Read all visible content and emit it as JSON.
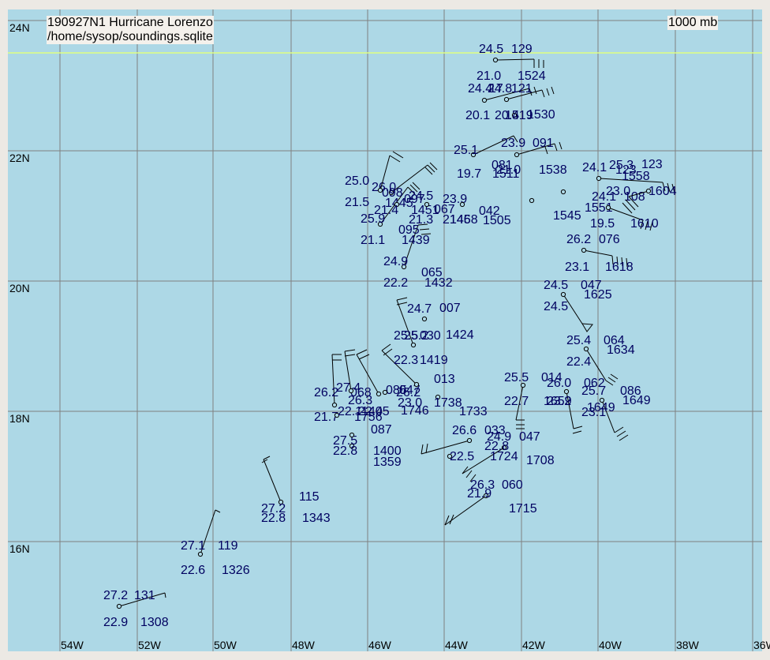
{
  "title": {
    "line1": "190927N1 Hurricane Lorenzo",
    "line2": "/home/sysop/soundings.sqlite",
    "level": "1000 mb"
  },
  "colors": {
    "ocean": "#add8e6",
    "grid": "#808080",
    "tropic": "#e0ff80",
    "station_text": "#000060",
    "frame": "#ece9e4"
  },
  "axes": {
    "lon_labels": [
      "54W",
      "52W",
      "50W",
      "48W",
      "46W",
      "44W",
      "42W",
      "40W",
      "38W",
      "36W"
    ],
    "lat_labels": [
      "24N",
      "22N",
      "20N",
      "18N",
      "16N"
    ]
  },
  "stations": [
    {
      "p": [
        151,
        768
      ],
      "lt": [
        131,
        754,
        "27.2"
      ],
      "rt": [
        170,
        754,
        "131"
      ],
      "lb": [
        131,
        788,
        "22.9"
      ],
      "rb": [
        178,
        788,
        "1308"
      ],
      "bar": [
        [
          209,
          751
        ],
        [
          210,
          757
        ]
      ]
    },
    {
      "p": [
        254,
        702
      ],
      "lt": [
        229,
        691,
        "27.1"
      ],
      "rt": [
        276,
        691,
        "119"
      ],
      "lb": [
        229,
        722,
        "22.6"
      ],
      "rb": [
        281,
        722,
        "1326"
      ],
      "bar": [
        [
          273,
          646
        ],
        [
          279,
          649
        ]
      ]
    },
    {
      "p": [
        356,
        636
      ],
      "lt": [
        331,
        644,
        "27.2"
      ],
      "rt": [
        379,
        629,
        "115"
      ],
      "lb": [
        331,
        656,
        "22.8"
      ],
      "rb": [
        383,
        656,
        "1343"
      ],
      "bar": [
        [
          334,
          582
        ],
        [
          342,
          578
        ],
        [
          332,
          586
        ],
        [
          339,
          582
        ]
      ]
    },
    {
      "p": [
        446,
        565
      ],
      "lt": [
        422,
        558,
        "27.5"
      ],
      "rt": [
        470,
        544,
        "087"
      ],
      "lb": [
        422,
        571,
        "22.8"
      ],
      "rb": [
        473,
        571,
        "1400"
      ]
    },
    {
      "p": [
        446,
        551
      ],
      "lt": [
        398,
        528,
        "21.7"
      ],
      "rt": [
        449,
        528,
        "1756"
      ]
    },
    {
      "p": [
        427,
        526
      ],
      "lt": [
        428,
        521,
        "22.1"
      ],
      "rt": [
        458,
        521,
        "1405"
      ]
    },
    {
      "p": [
        424,
        513
      ],
      "lt": [
        398,
        497,
        "26.2"
      ],
      "rt": [
        444,
        497,
        "068"
      ],
      "lb": [
        426,
        491,
        "27.4"
      ],
      "bar": [
        [
          421,
          449
        ],
        [
          433,
          449
        ],
        [
          421,
          456
        ],
        [
          433,
          456
        ]
      ]
    },
    {
      "p": [
        445,
        495
      ],
      "lt": [
        441,
        507,
        "26.3"
      ],
      "rt": [
        489,
        494,
        "085"
      ],
      "lb": [
        454,
        521,
        "22.4"
      ],
      "bar": [
        [
          437,
          445
        ],
        [
          450,
          443
        ],
        [
          437,
          451
        ],
        [
          450,
          449
        ]
      ]
    },
    {
      "p": [
        480,
        499
      ],
      "lt": [
        473,
        585,
        "1359"
      ],
      "rt": [
        506,
        494,
        "047"
      ],
      "lb": [
        504,
        510,
        "23.0"
      ],
      "rb": [
        508,
        520,
        "1746"
      ],
      "bar": [
        [
          452,
          449
        ],
        [
          465,
          443
        ],
        [
          455,
          455
        ],
        [
          468,
          449
        ]
      ]
    },
    {
      "p": [
        488,
        497
      ],
      "lt": [
        502,
        497,
        "26.2"
      ]
    },
    {
      "p": [
        528,
        487
      ],
      "lt": [
        499,
        456,
        "22.3"
      ],
      "rt": [
        550,
        480,
        "013"
      ],
      "lb": [
        532,
        456,
        "1419"
      ],
      "bar": [
        [
          484,
          444
        ],
        [
          495,
          436
        ],
        [
          486,
          450
        ],
        [
          497,
          442
        ]
      ]
    },
    {
      "p": [
        555,
        503
      ],
      "lt": [
        550,
        510,
        "1738"
      ]
    },
    {
      "p": [
        524,
        437
      ],
      "lt": [
        499,
        425,
        "25.5"
      ],
      "rt": [
        532,
        425,
        "030"
      ],
      "lb": [
        512,
        425,
        "25.2"
      ],
      "rb": [
        565,
        424,
        "1424"
      ],
      "bar": [
        [
          503,
          380
        ],
        [
          516,
          377
        ],
        [
          503,
          386
        ],
        [
          516,
          383
        ]
      ]
    },
    {
      "p": [
        538,
        404
      ],
      "lt": [
        516,
        391,
        "24.7"
      ],
      "rt": [
        557,
        390,
        "007"
      ]
    },
    {
      "p": [
        512,
        338
      ],
      "lt": [
        486,
        331,
        "24.9"
      ],
      "rt": [
        534,
        345,
        "065"
      ],
      "lb": [
        486,
        358,
        "22.2"
      ],
      "rb": [
        538,
        358,
        "1432"
      ],
      "bar": [
        [
          530,
          285
        ],
        [
          542,
          284
        ],
        [
          532,
          291
        ],
        [
          544,
          290
        ],
        [
          534,
          297
        ],
        [
          546,
          296
        ]
      ]
    },
    {
      "p": [
        482,
        284
      ],
      "lt": [
        457,
        277,
        "25.9"
      ],
      "rt": [
        505,
        291,
        "095"
      ],
      "lb": [
        457,
        304,
        "21.1"
      ],
      "rb": [
        509,
        304,
        "1439"
      ],
      "bar": [
        [
          517,
          237
        ],
        [
          526,
          246
        ],
        [
          520,
          234
        ],
        [
          529,
          243
        ],
        [
          523,
          231
        ],
        [
          532,
          240
        ]
      ]
    },
    {
      "p": [
        496,
        244
      ],
      "lt": [
        471,
        237,
        "26.0"
      ],
      "rt": [
        484,
        244,
        "098"
      ],
      "lb": [
        488,
        257,
        "1445"
      ],
      "bar": [
        [
          542,
          209
        ],
        [
          551,
          218
        ],
        [
          539,
          212
        ],
        [
          548,
          221
        ],
        [
          545,
          206
        ],
        [
          554,
          215
        ]
      ]
    },
    {
      "p": [
        503,
        259
      ],
      "lt": [
        474,
        266,
        "21.4"
      ],
      "rt": [
        512,
        252,
        "097"
      ],
      "lb": [
        518,
        248,
        "24.5"
      ],
      "rb": [
        521,
        266,
        "1451"
      ]
    },
    {
      "p": [
        541,
        259
      ],
      "lt": [
        518,
        278,
        "21.3"
      ],
      "rt": [
        550,
        265,
        "067"
      ],
      "lb": [
        561,
        252,
        "23.9"
      ],
      "rb": [
        561,
        278,
        "2146"
      ]
    },
    {
      "p": [
        586,
        259
      ],
      "lt": [
        570,
        278,
        "1458"
      ],
      "rt": [
        607,
        267,
        "042"
      ],
      "lb": [
        612,
        279,
        "1505"
      ]
    },
    {
      "p": [
        482,
        241
      ],
      "lt": [
        437,
        229,
        "25.0"
      ],
      "lb": [
        437,
        256,
        "21.5"
      ],
      "bar": [
        [
          494,
          197
        ],
        [
          507,
          205
        ],
        [
          498,
          192
        ],
        [
          511,
          200
        ]
      ]
    },
    {
      "p": [
        600,
        196
      ],
      "lt": [
        575,
        190,
        "25.1"
      ],
      "rt": [
        623,
        209,
        "081"
      ],
      "lb": [
        579,
        220,
        "19.7"
      ],
      "rb": [
        624,
        220,
        "1511"
      ],
      "bar": [
        [
          651,
          172
        ],
        [
          656,
          180
        ]
      ]
    },
    {
      "p": [
        655,
        196
      ],
      "lt": [
        635,
        181,
        "23.9"
      ],
      "rt": [
        675,
        181,
        "091"
      ],
      "lb": [
        629,
        215,
        "21.0"
      ],
      "rb": [
        683,
        215,
        "1538"
      ],
      "bar": [
        [
          703,
          182
        ],
        [
          706,
          191
        ],
        [
          709,
          180
        ],
        [
          712,
          189
        ],
        [
          691,
          186
        ],
        [
          694,
          195
        ]
      ]
    },
    {
      "p": [
        614,
        127
      ],
      "lt": [
        593,
        112,
        "24.4"
      ],
      "rt": [
        618,
        112,
        "24.8"
      ],
      "lb": [
        590,
        146,
        "20.1"
      ],
      "rb": [
        640,
        146,
        "1519"
      ],
      "bar": [
        [
          671,
          112
        ],
        [
          674,
          121
        ],
        [
          677,
          110
        ],
        [
          680,
          119
        ]
      ]
    },
    {
      "p": [
        642,
        126
      ],
      "lt": [
        604,
        96,
        "21.0"
      ],
      "rt": [
        656,
        96,
        "1524"
      ],
      "lb": [
        620,
        112,
        "17"
      ],
      "rb": [
        648,
        112,
        "121"
      ],
      "bar": [
        [
          687,
          114
        ],
        [
          690,
          123
        ],
        [
          693,
          112
        ],
        [
          696,
          121
        ],
        [
          699,
          110
        ],
        [
          702,
          119
        ]
      ]
    },
    {
      "p": [
        652,
        146
      ],
      "lt": [
        627,
        146,
        "20.4"
      ],
      "rb": [
        668,
        145,
        "1530"
      ]
    },
    {
      "p": [
        628,
        76
      ],
      "lt": [
        607,
        62,
        "24.5"
      ],
      "rt": [
        648,
        62,
        "129"
      ],
      "bar": [
        [
          677,
          75
        ],
        [
          677,
          86
        ],
        [
          683,
          75
        ],
        [
          683,
          86
        ],
        [
          689,
          76
        ],
        [
          689,
          86
        ]
      ]
    },
    {
      "p": [
        674,
        254
      ],
      "lt": [
        701,
        273,
        "1545"
      ]
    },
    {
      "p": [
        714,
        243
      ],
      "lt": [
        738,
        212,
        "24.1"
      ],
      "rt": [
        750,
        249,
        "24.1"
      ],
      "lb": [
        741,
        263,
        "1551"
      ]
    },
    {
      "p": [
        759,
        226
      ],
      "lt": [
        772,
        209,
        "25.3"
      ],
      "rt": [
        813,
        208,
        "123"
      ],
      "lb": [
        780,
        215,
        "123"
      ],
      "rb": [
        788,
        223,
        "1558"
      ],
      "bar": [
        [
          840,
          231
        ],
        [
          843,
          242
        ],
        [
          846,
          232
        ],
        [
          849,
          243
        ],
        [
          852,
          233
        ],
        [
          855,
          244
        ]
      ]
    },
    {
      "p": [
        771,
        263
      ],
      "lt": [
        768,
        242,
        "23.0"
      ],
      "rt": [
        791,
        249,
        "108"
      ],
      "lb": [
        748,
        283,
        "19.5"
      ],
      "rb": [
        799,
        283,
        "1610"
      ],
      "bar": [
        [
          815,
          279
        ],
        [
          812,
          290
        ],
        [
          821,
          280
        ],
        [
          818,
          291
        ],
        [
          827,
          281
        ],
        [
          824,
          292
        ]
      ]
    },
    {
      "p": [
        822,
        242
      ],
      "lt": [
        822,
        242,
        "1604"
      ],
      "bar": [
        [
          797,
          249
        ],
        [
          809,
          262
        ],
        [
          793,
          253
        ],
        [
          805,
          266
        ],
        [
          789,
          257
        ],
        [
          801,
          270
        ]
      ]
    },
    {
      "p": [
        740,
        317
      ],
      "lt": [
        718,
        303,
        "26.2"
      ],
      "rt": [
        759,
        303,
        "076"
      ],
      "lb": [
        716,
        338,
        "23.1"
      ],
      "rb": [
        767,
        338,
        "1618"
      ],
      "bar": [
        [
          776,
          324
        ],
        [
          777,
          335
        ],
        [
          782,
          325
        ],
        [
          783,
          336
        ],
        [
          788,
          326
        ],
        [
          789,
          337
        ],
        [
          794,
          327
        ],
        [
          795,
          338
        ]
      ]
    },
    {
      "p": [
        714,
        373
      ],
      "lt": [
        689,
        361,
        "24.5"
      ],
      "rt": [
        736,
        361,
        "047"
      ],
      "lb": [
        689,
        388,
        "24.5"
      ],
      "rb": [
        740,
        373,
        "1625"
      ],
      "flag": [
        [
          738,
          410
        ],
        [
          751,
          411
        ],
        [
          744,
          420
        ]
      ]
    },
    {
      "p": [
        743,
        442
      ],
      "lt": [
        718,
        431,
        "25.4"
      ],
      "rt": [
        765,
        431,
        "064"
      ],
      "lb": [
        718,
        458,
        "22.4"
      ],
      "rb": [
        769,
        443,
        "1634"
      ],
      "bar": [
        [
          768,
          482
        ],
        [
          777,
          488
        ],
        [
          771,
          478
        ],
        [
          780,
          484
        ],
        [
          774,
          474
        ],
        [
          783,
          480
        ]
      ]
    },
    {
      "p": [
        718,
        496
      ],
      "lt": [
        693,
        485,
        "26.0"
      ],
      "rt": [
        740,
        485,
        "062"
      ],
      "lb": [
        693,
        508,
        "23.2"
      ],
      "rb": [
        689,
        508,
        "1659"
      ],
      "bar": [
        [
          727,
          543
        ],
        [
          738,
          540
        ],
        [
          726,
          549
        ],
        [
          737,
          546
        ]
      ]
    },
    {
      "p": [
        763,
        507
      ],
      "lt": [
        737,
        495,
        "25.7"
      ],
      "rt": [
        786,
        495,
        "086"
      ],
      "lb": [
        737,
        522,
        "23.1"
      ],
      "rb": [
        789,
        507,
        "1649"
      ],
      "bar": [
        [
          779,
          548
        ],
        [
          790,
          541
        ],
        [
          782,
          553
        ],
        [
          793,
          546
        ],
        [
          785,
          558
        ],
        [
          796,
          551
        ]
      ]
    },
    {
      "p": [
        663,
        488
      ],
      "lt": [
        639,
        478,
        "25.5"
      ],
      "rt": [
        686,
        478,
        "014"
      ],
      "lb": [
        639,
        508,
        "22.7"
      ],
      "rb": [
        744,
        516,
        "1649"
      ],
      "bar": [
        [
          654,
          532
        ],
        [
          665,
          532
        ],
        [
          654,
          538
        ],
        [
          665,
          538
        ],
        [
          654,
          543
        ],
        [
          665,
          543
        ]
      ]
    },
    {
      "p": [
        595,
        558
      ],
      "lt": [
        573,
        545,
        "26.6"
      ],
      "rt": [
        614,
        545,
        "033"
      ],
      "lb": [
        582,
        521,
        "1733"
      ],
      "bar": [
        [
          534,
          575
        ],
        [
          536,
          563
        ],
        [
          540,
          574
        ],
        [
          542,
          562
        ]
      ]
    },
    {
      "p": [
        639,
        567
      ],
      "lt": [
        617,
        553,
        "24.9"
      ],
      "rt": [
        658,
        553,
        "047"
      ],
      "lb": [
        614,
        565,
        "22.8"
      ],
      "rb": [
        621,
        578,
        "1724"
      ],
      "bar": [
        [
          586,
          600
        ],
        [
          593,
          591
        ],
        [
          591,
          605
        ],
        [
          598,
          596
        ],
        [
          596,
          610
        ],
        [
          603,
          601
        ]
      ]
    },
    {
      "p": [
        570,
        578
      ],
      "lt": [
        570,
        578,
        "22.5"
      ],
      "rt": [
        667,
        583,
        "1708"
      ]
    },
    {
      "p": [
        616,
        628
      ],
      "lt": [
        596,
        614,
        "26.3"
      ],
      "rt": [
        636,
        614,
        "060"
      ],
      "lb": [
        592,
        625,
        "21.9"
      ],
      "rb": [
        645,
        644,
        "1715"
      ],
      "bar": [
        [
          564,
          665
        ],
        [
          569,
          653
        ],
        [
          570,
          664
        ],
        [
          575,
          652
        ]
      ]
    }
  ]
}
